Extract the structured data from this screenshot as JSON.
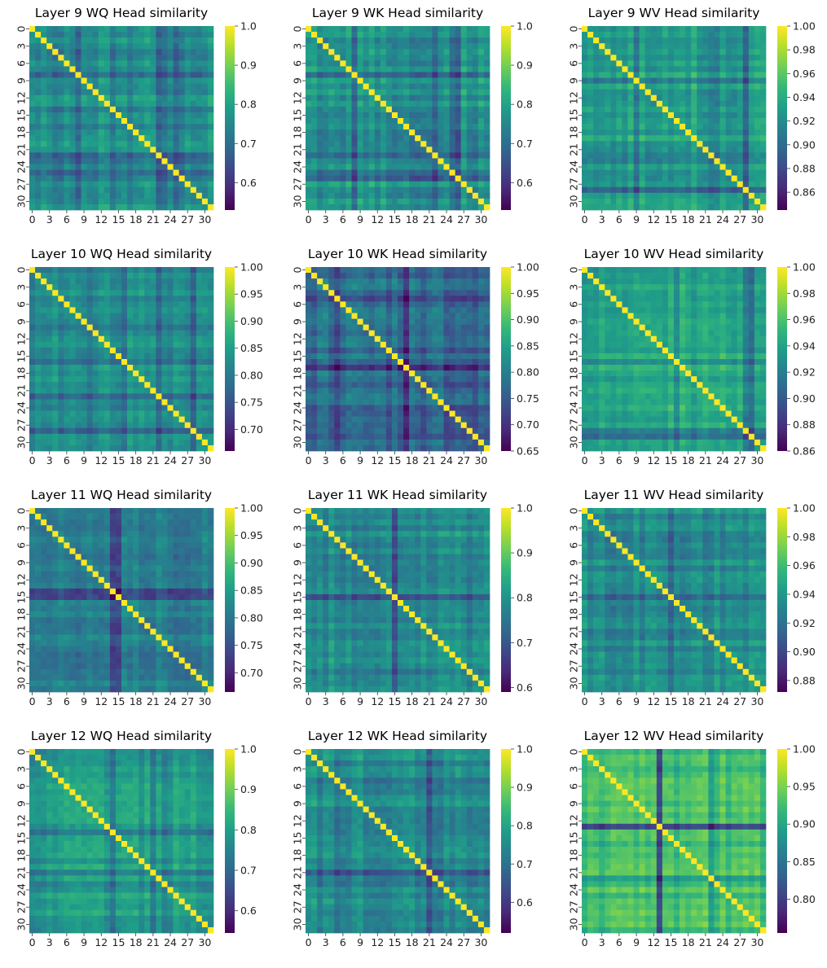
{
  "chart_data": [
    {
      "type": "heatmap",
      "title": "Layer 9 WQ Head similarity",
      "n": 32,
      "ticks": [
        0,
        3,
        6,
        9,
        12,
        15,
        18,
        21,
        24,
        27,
        30
      ],
      "colormap": "viridis",
      "vmin": 0.53,
      "vmax": 1.0,
      "colorbar_ticks": [
        "0.6",
        "0.7",
        "0.8",
        "0.9",
        "1.0"
      ],
      "colorbar_values": [
        0.6,
        0.7,
        0.8,
        0.9,
        1.0
      ],
      "base": 0.76,
      "amp": 0.05,
      "low_rows": [
        [
          8,
          0.07
        ],
        [
          22,
          0.1
        ],
        [
          23,
          0.08
        ],
        [
          25,
          0.1
        ],
        [
          26,
          0.06
        ]
      ],
      "diagonal": 1.0
    },
    {
      "type": "heatmap",
      "title": "Layer 9 WK Head similarity",
      "n": 32,
      "ticks": [
        0,
        3,
        6,
        9,
        12,
        15,
        18,
        21,
        24,
        27,
        30
      ],
      "colormap": "viridis",
      "vmin": 0.53,
      "vmax": 1.0,
      "colorbar_ticks": [
        "0.6",
        "0.7",
        "0.8",
        "0.9",
        "1.0"
      ],
      "colorbar_values": [
        0.6,
        0.7,
        0.8,
        0.9,
        1.0
      ],
      "base": 0.77,
      "amp": 0.05,
      "low_rows": [
        [
          8,
          0.1
        ],
        [
          22,
          0.08
        ],
        [
          25,
          0.06
        ],
        [
          26,
          0.06
        ]
      ],
      "diagonal": 1.0
    },
    {
      "type": "heatmap",
      "title": "Layer 9 WV Head similarity",
      "n": 32,
      "ticks": [
        0,
        3,
        6,
        9,
        12,
        15,
        18,
        21,
        24,
        27,
        30
      ],
      "colormap": "viridis",
      "vmin": 0.845,
      "vmax": 1.0,
      "colorbar_ticks": [
        "0.86",
        "0.88",
        "0.90",
        "0.92",
        "0.94",
        "0.96",
        "0.98",
        "1.00"
      ],
      "colorbar_values": [
        0.86,
        0.88,
        0.9,
        0.92,
        0.94,
        0.96,
        0.98,
        1.0
      ],
      "base": 0.935,
      "amp": 0.015,
      "low_rows": [
        [
          9,
          0.015
        ],
        [
          22,
          0.02
        ],
        [
          23,
          0.015
        ],
        [
          25,
          0.02
        ],
        [
          28,
          0.03
        ]
      ],
      "diagonal": 1.0
    },
    {
      "type": "heatmap",
      "title": "Layer 10 WQ Head similarity",
      "n": 32,
      "ticks": [
        0,
        3,
        6,
        9,
        12,
        15,
        18,
        21,
        24,
        27,
        30
      ],
      "colormap": "viridis",
      "vmin": 0.66,
      "vmax": 1.0,
      "colorbar_ticks": [
        "0.70",
        "0.75",
        "0.80",
        "0.85",
        "0.90",
        "0.95",
        "1.00"
      ],
      "colorbar_values": [
        0.7,
        0.75,
        0.8,
        0.85,
        0.9,
        0.95,
        1.0
      ],
      "base": 0.82,
      "amp": 0.03,
      "low_rows": [
        [
          5,
          0.03
        ],
        [
          10,
          0.03
        ],
        [
          16,
          0.04
        ],
        [
          22,
          0.03
        ],
        [
          28,
          0.05
        ]
      ],
      "diagonal": 1.0
    },
    {
      "type": "heatmap",
      "title": "Layer 10 WK Head similarity",
      "n": 32,
      "ticks": [
        0,
        3,
        6,
        9,
        12,
        15,
        18,
        21,
        24,
        27,
        30
      ],
      "colormap": "viridis",
      "vmin": 0.65,
      "vmax": 1.0,
      "colorbar_ticks": [
        "0.65",
        "0.70",
        "0.75",
        "0.80",
        "0.85",
        "0.90",
        "0.95",
        "1.00"
      ],
      "colorbar_values": [
        0.65,
        0.7,
        0.75,
        0.8,
        0.85,
        0.9,
        0.95,
        1.0
      ],
      "base": 0.77,
      "amp": 0.04,
      "low_rows": [
        [
          5,
          0.03
        ],
        [
          17,
          0.06
        ],
        [
          29,
          0.05
        ]
      ],
      "diagonal": 1.0
    },
    {
      "type": "heatmap",
      "title": "Layer 10 WV Head similarity",
      "n": 32,
      "ticks": [
        0,
        3,
        6,
        9,
        12,
        15,
        18,
        21,
        24,
        27,
        30
      ],
      "colormap": "viridis",
      "vmin": 0.86,
      "vmax": 1.0,
      "colorbar_ticks": [
        "0.86",
        "0.88",
        "0.90",
        "0.92",
        "0.94",
        "0.96",
        "0.98",
        "1.00"
      ],
      "colorbar_values": [
        0.86,
        0.88,
        0.9,
        0.92,
        0.94,
        0.96,
        0.98,
        1.0
      ],
      "base": 0.945,
      "amp": 0.012,
      "low_rows": [
        [
          16,
          0.01
        ],
        [
          28,
          0.025
        ],
        [
          29,
          0.04
        ]
      ],
      "diagonal": 1.0
    },
    {
      "type": "heatmap",
      "title": "Layer 11 WQ Head similarity",
      "n": 32,
      "ticks": [
        0,
        3,
        6,
        9,
        12,
        15,
        18,
        21,
        24,
        27,
        30
      ],
      "colormap": "viridis",
      "vmin": 0.665,
      "vmax": 1.0,
      "colorbar_ticks": [
        "0.70",
        "0.75",
        "0.80",
        "0.85",
        "0.90",
        "0.95",
        "1.00"
      ],
      "colorbar_values": [
        0.7,
        0.75,
        0.8,
        0.85,
        0.9,
        0.95,
        1.0
      ],
      "base": 0.81,
      "amp": 0.035,
      "low_rows": [
        [
          14,
          0.06
        ],
        [
          15,
          0.05
        ],
        [
          27,
          0.04
        ]
      ],
      "diagonal": 1.0
    },
    {
      "type": "heatmap",
      "title": "Layer 11 WK Head similarity",
      "n": 32,
      "ticks": [
        0,
        3,
        6,
        9,
        12,
        15,
        18,
        21,
        24,
        27,
        30
      ],
      "colormap": "viridis",
      "vmin": 0.59,
      "vmax": 1.0,
      "colorbar_ticks": [
        "0.6",
        "0.7",
        "0.8",
        "0.9",
        "1.0"
      ],
      "colorbar_values": [
        0.6,
        0.7,
        0.8,
        0.9,
        1.0
      ],
      "base": 0.78,
      "amp": 0.04,
      "low_rows": [
        [
          15,
          0.09
        ],
        [
          28,
          0.05
        ]
      ],
      "diagonal": 1.0
    },
    {
      "type": "heatmap",
      "title": "Layer 11 WV Head similarity",
      "n": 32,
      "ticks": [
        0,
        3,
        6,
        9,
        12,
        15,
        18,
        21,
        24,
        27,
        30
      ],
      "colormap": "viridis",
      "vmin": 0.872,
      "vmax": 1.0,
      "colorbar_ticks": [
        "0.88",
        "0.90",
        "0.92",
        "0.94",
        "0.96",
        "0.98",
        "1.00"
      ],
      "colorbar_values": [
        0.88,
        0.9,
        0.92,
        0.94,
        0.96,
        0.98,
        1.0
      ],
      "base": 0.935,
      "amp": 0.012,
      "low_rows": [
        [
          15,
          0.025
        ],
        [
          8,
          0.008
        ],
        [
          24,
          0.008
        ],
        [
          28,
          0.008
        ]
      ],
      "diagonal": 1.0
    },
    {
      "type": "heatmap",
      "title": "Layer 12 WQ Head similarity",
      "n": 32,
      "ticks": [
        0,
        3,
        6,
        9,
        12,
        15,
        18,
        21,
        24,
        27,
        30
      ],
      "colormap": "viridis",
      "vmin": 0.545,
      "vmax": 1.0,
      "colorbar_ticks": [
        "0.6",
        "0.7",
        "0.8",
        "0.9",
        "1.0"
      ],
      "colorbar_values": [
        0.6,
        0.7,
        0.8,
        0.9,
        1.0
      ],
      "base": 0.79,
      "amp": 0.04,
      "low_rows": [
        [
          14,
          0.05
        ],
        [
          19,
          0.05
        ],
        [
          21,
          0.04
        ],
        [
          23,
          0.04
        ]
      ],
      "diagonal": 1.0
    },
    {
      "type": "heatmap",
      "title": "Layer 12 WK Head similarity",
      "n": 32,
      "ticks": [
        0,
        3,
        6,
        9,
        12,
        15,
        18,
        21,
        24,
        27,
        30
      ],
      "colormap": "viridis",
      "vmin": 0.52,
      "vmax": 1.0,
      "colorbar_ticks": [
        "0.6",
        "0.7",
        "0.8",
        "0.9",
        "1.0"
      ],
      "colorbar_values": [
        0.6,
        0.7,
        0.8,
        0.9,
        1.0
      ],
      "base": 0.76,
      "amp": 0.05,
      "low_rows": [
        [
          5,
          0.07
        ],
        [
          13,
          0.05
        ],
        [
          21,
          0.08
        ],
        [
          23,
          0.05
        ]
      ],
      "diagonal": 1.0
    },
    {
      "type": "heatmap",
      "title": "Layer 12 WV Head similarity",
      "n": 32,
      "ticks": [
        0,
        3,
        6,
        9,
        12,
        15,
        18,
        21,
        24,
        27,
        30
      ],
      "colormap": "viridis",
      "vmin": 0.755,
      "vmax": 1.0,
      "colorbar_ticks": [
        "0.80",
        "0.85",
        "0.90",
        "0.95",
        "1.00"
      ],
      "colorbar_values": [
        0.8,
        0.85,
        0.9,
        0.95,
        1.0
      ],
      "base": 0.925,
      "amp": 0.02,
      "low_rows": [
        [
          13,
          0.12
        ],
        [
          22,
          0.05
        ]
      ],
      "diagonal": 1.0
    }
  ]
}
